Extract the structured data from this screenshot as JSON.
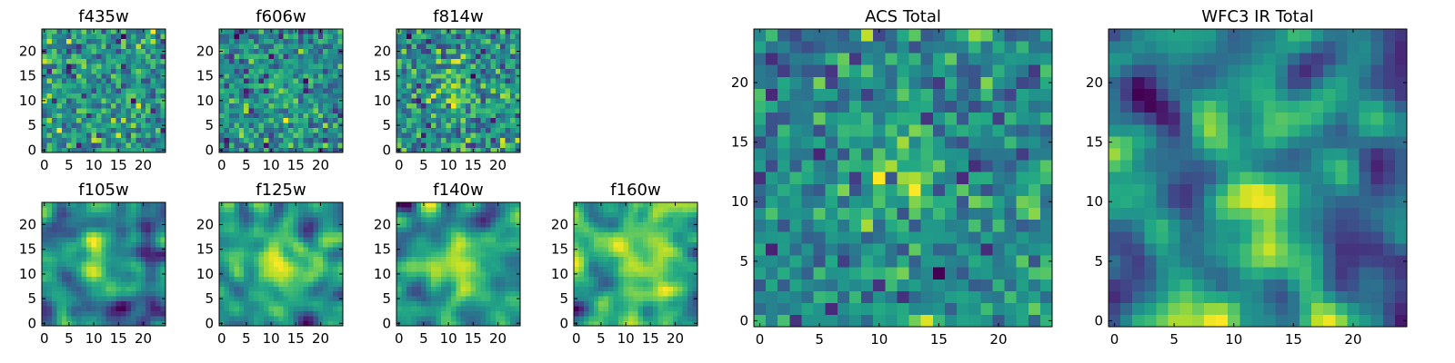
{
  "chart_data": [
    {
      "type": "heatmap",
      "title": "f435w",
      "x_ticks": [
        "0",
        "5",
        "10",
        "15",
        "20"
      ],
      "y_ticks": [
        "0",
        "5",
        "10",
        "15",
        "20"
      ],
      "xlim": [
        -0.5,
        24.5
      ],
      "ylim": [
        -0.5,
        24.5
      ],
      "grid_size": 25,
      "structure": "noise",
      "seed": 11
    },
    {
      "type": "heatmap",
      "title": "f606w",
      "x_ticks": [
        "0",
        "5",
        "10",
        "15",
        "20"
      ],
      "y_ticks": [
        "0",
        "5",
        "10",
        "15",
        "20"
      ],
      "xlim": [
        -0.5,
        24.5
      ],
      "ylim": [
        -0.5,
        24.5
      ],
      "grid_size": 25,
      "structure": "weak-source",
      "seed": 23
    },
    {
      "type": "heatmap",
      "title": "f814w",
      "x_ticks": [
        "0",
        "5",
        "10",
        "15",
        "20"
      ],
      "y_ticks": [
        "0",
        "5",
        "10",
        "15",
        "20"
      ],
      "xlim": [
        -0.5,
        24.5
      ],
      "ylim": [
        -0.5,
        24.5
      ],
      "grid_size": 25,
      "structure": "weak-source",
      "seed": 37
    },
    {
      "type": "heatmap",
      "title": "f105w",
      "x_ticks": [
        "0",
        "5",
        "10",
        "15",
        "20"
      ],
      "y_ticks": [
        "0",
        "5",
        "10",
        "15",
        "20"
      ],
      "xlim": [
        -0.5,
        24.5
      ],
      "ylim": [
        -0.5,
        24.5
      ],
      "grid_size": 25,
      "structure": "smooth-source",
      "seed": 41
    },
    {
      "type": "heatmap",
      "title": "f125w",
      "x_ticks": [
        "0",
        "5",
        "10",
        "15",
        "20"
      ],
      "y_ticks": [
        "0",
        "5",
        "10",
        "15",
        "20"
      ],
      "xlim": [
        -0.5,
        24.5
      ],
      "ylim": [
        -0.5,
        24.5
      ],
      "grid_size": 25,
      "structure": "smooth-source",
      "seed": 53
    },
    {
      "type": "heatmap",
      "title": "f140w",
      "x_ticks": [
        "0",
        "5",
        "10",
        "15",
        "20"
      ],
      "y_ticks": [
        "0",
        "5",
        "10",
        "15",
        "20"
      ],
      "xlim": [
        -0.5,
        24.5
      ],
      "ylim": [
        -0.5,
        24.5
      ],
      "grid_size": 25,
      "structure": "smooth-source",
      "seed": 67
    },
    {
      "type": "heatmap",
      "title": "f160w",
      "x_ticks": [
        "0",
        "5",
        "10",
        "15",
        "20"
      ],
      "y_ticks": [
        "0",
        "5",
        "10",
        "15",
        "20"
      ],
      "xlim": [
        -0.5,
        24.5
      ],
      "ylim": [
        -0.5,
        24.5
      ],
      "grid_size": 25,
      "structure": "smooth-source",
      "seed": 79
    },
    {
      "type": "heatmap",
      "title": "ACS Total",
      "x_ticks": [
        "0",
        "5",
        "10",
        "15",
        "20"
      ],
      "y_ticks": [
        "0",
        "5",
        "10",
        "15",
        "20"
      ],
      "xlim": [
        -0.5,
        24.5
      ],
      "ylim": [
        -0.5,
        24.5
      ],
      "grid_size": 25,
      "structure": "source",
      "seed": 97
    },
    {
      "type": "heatmap",
      "title": "WFC3 IR Total",
      "x_ticks": [
        "0",
        "5",
        "10",
        "15",
        "20"
      ],
      "y_ticks": [
        "0",
        "5",
        "10",
        "15",
        "20"
      ],
      "xlim": [
        -0.5,
        24.5
      ],
      "ylim": [
        -0.5,
        24.5
      ],
      "grid_size": 25,
      "structure": "smooth-source",
      "seed": 113
    }
  ],
  "colormap": "viridis",
  "colors": {
    "low": "#440154",
    "mid": "#21918c",
    "high": "#fde725"
  }
}
